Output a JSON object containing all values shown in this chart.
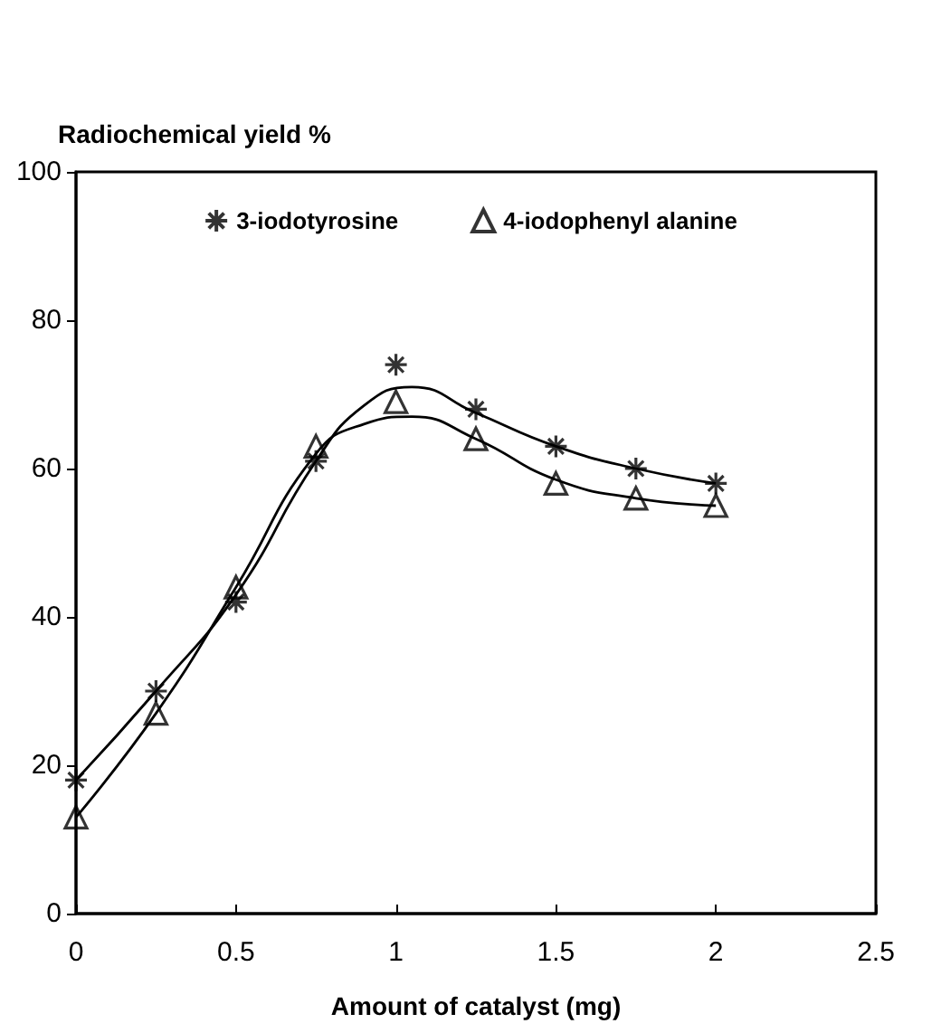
{
  "chart_data": {
    "type": "scatter",
    "ylabel": "Radiochemical yield %",
    "xlabel": "Amount of catalyst (mg)",
    "xlim": [
      0,
      2.5
    ],
    "xticks": [
      0,
      0.5,
      1,
      1.5,
      2,
      2.5
    ],
    "ylim": [
      0,
      100
    ],
    "yticks": [
      0,
      20,
      40,
      60,
      80,
      100
    ],
    "grid": false,
    "legend": "top",
    "series": [
      {
        "name": "3-iodotyrosine",
        "marker": "cross",
        "color": "#000000",
        "x": [
          0,
          0.25,
          0.5,
          0.75,
          1,
          1.25,
          1.5,
          1.75,
          2
        ],
        "values": [
          18,
          30,
          42,
          61,
          74,
          68,
          63,
          60,
          58
        ]
      },
      {
        "name": "4-iodophenyl alanine",
        "marker": "triangle",
        "color": "#000000",
        "x": [
          0,
          0.25,
          0.5,
          0.75,
          1,
          1.25,
          1.5,
          1.75,
          2
        ],
        "values": [
          13,
          27,
          44,
          63,
          69,
          64,
          58,
          56,
          55
        ]
      },
      {
        "type": "line",
        "marker": "none",
        "color": "#000000",
        "x": [
          0,
          0.25,
          0.5,
          0.75,
          0.9,
          1.05,
          1.25,
          1.5,
          1.75,
          2
        ],
        "values": [
          18,
          30,
          43,
          61,
          68.5,
          71,
          67.5,
          63,
          60,
          58
        ]
      },
      {
        "type": "line",
        "marker": "none",
        "color": "#000000",
        "x": [
          0,
          0.25,
          0.5,
          0.75,
          0.9,
          1.05,
          1.25,
          1.5,
          1.75,
          2
        ],
        "values": [
          13,
          27,
          44,
          62,
          66,
          67,
          64,
          58.5,
          56,
          55
        ]
      }
    ]
  }
}
